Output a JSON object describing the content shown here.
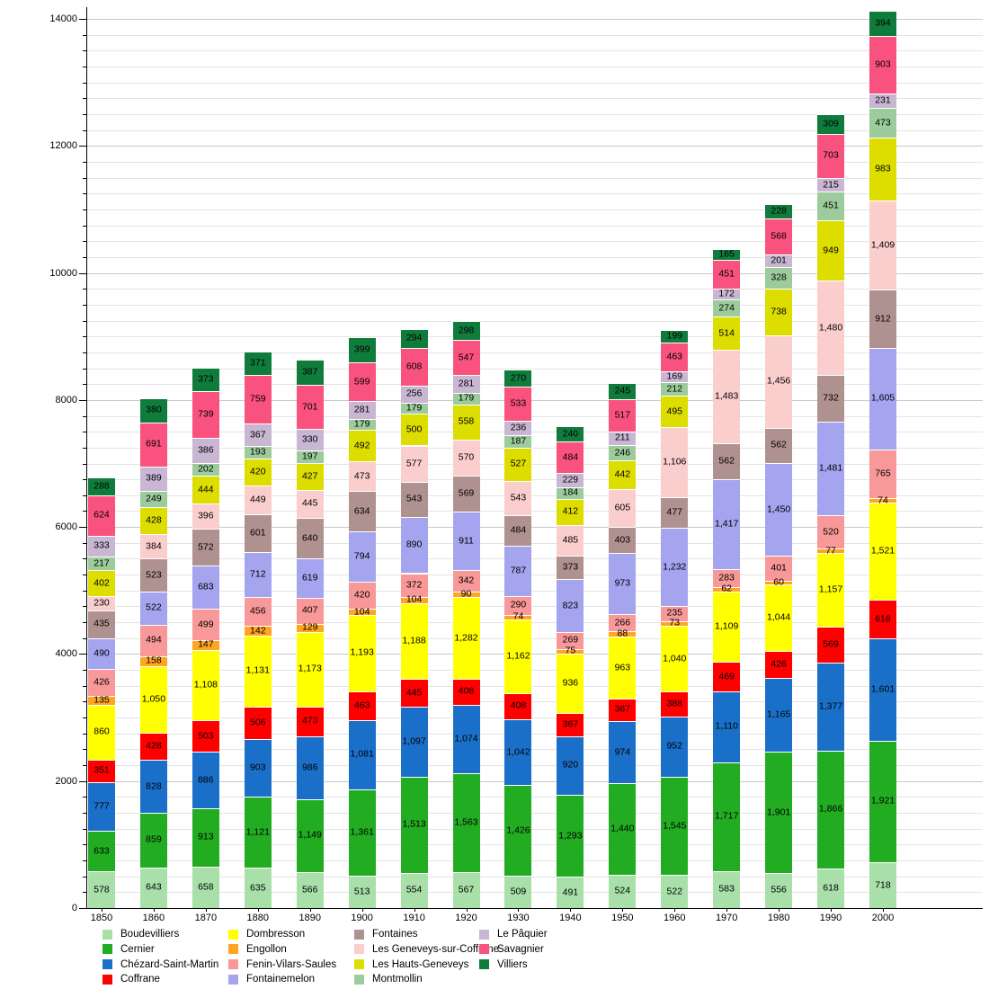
{
  "chart_data": {
    "type": "bar",
    "stacked": true,
    "categories": [
      "1850",
      "1860",
      "1870",
      "1880",
      "1890",
      "1900",
      "1910",
      "1920",
      "1930",
      "1940",
      "1950",
      "1960",
      "1970",
      "1980",
      "1990",
      "2000"
    ],
    "series": [
      {
        "name": "Boudevilliers",
        "color": "#a9e0a9",
        "values": [
          578,
          643,
          658,
          635,
          566,
          513,
          554,
          567,
          509,
          491,
          524,
          522,
          583,
          556,
          618,
          718
        ]
      },
      {
        "name": "Cernier",
        "color": "#22ac22",
        "values": [
          633,
          859,
          913,
          1121,
          1149,
          1361,
          1513,
          1563,
          1426,
          1293,
          1440,
          1545,
          1717,
          1901,
          1866,
          1921
        ]
      },
      {
        "name": "Chézard-Saint-Martin",
        "color": "#1a70c8",
        "values": [
          777,
          828,
          886,
          903,
          986,
          1081,
          1097,
          1074,
          1042,
          920,
          974,
          952,
          1110,
          1165,
          1377,
          1601
        ]
      },
      {
        "name": "Coffrane",
        "color": "#ff0000",
        "values": [
          351,
          428,
          503,
          506,
          473,
          463,
          445,
          408,
          408,
          367,
          367,
          388,
          469,
          426,
          569,
          618
        ]
      },
      {
        "name": "Dombresson",
        "color": "#ffff00",
        "values": [
          860,
          1050,
          1108,
          1131,
          1173,
          1193,
          1188,
          1282,
          1162,
          936,
          963,
          1040,
          1109,
          1044,
          1157,
          1521
        ]
      },
      {
        "name": "Engollon",
        "color": "#ffa423",
        "values": [
          135,
          158,
          147,
          142,
          129,
          104,
          104,
          90,
          74,
          75,
          88,
          73,
          62,
          60,
          77,
          74
        ]
      },
      {
        "name": "Fenin-Vilars-Saules",
        "color": "#f99898",
        "values": [
          426,
          494,
          499,
          456,
          407,
          420,
          372,
          342,
          290,
          269,
          266,
          235,
          283,
          401,
          520,
          765
        ]
      },
      {
        "name": "Fontainemelon",
        "color": "#a4a4ef",
        "values": [
          490,
          522,
          683,
          712,
          619,
          794,
          890,
          911,
          787,
          823,
          973,
          1232,
          1417,
          1450,
          1481,
          1605
        ]
      },
      {
        "name": "Fontaines",
        "color": "#af9290",
        "values": [
          435,
          523,
          572,
          601,
          640,
          634,
          543,
          569,
          484,
          373,
          403,
          477,
          562,
          562,
          732,
          912
        ]
      },
      {
        "name": "Les Geneveys-sur-Coffrane",
        "color": "#fbcece",
        "values": [
          230,
          384,
          396,
          449,
          445,
          473,
          577,
          570,
          543,
          485,
          605,
          1106,
          1483,
          1456,
          1480,
          1409
        ]
      },
      {
        "name": "Les Hauts-Geneveys",
        "color": "#dedd00",
        "values": [
          402,
          428,
          444,
          420,
          427,
          492,
          500,
          558,
          527,
          412,
          442,
          495,
          514,
          738,
          949,
          983
        ]
      },
      {
        "name": "Montmollin",
        "color": "#9ccb9c",
        "values": [
          217,
          249,
          202,
          193,
          197,
          179,
          179,
          179,
          187,
          184,
          246,
          212,
          274,
          328,
          451,
          473
        ]
      },
      {
        "name": "Le Pâquier",
        "color": "#c8b6d3",
        "values": [
          333,
          389,
          386,
          367,
          330,
          281,
          256,
          281,
          236,
          229,
          211,
          169,
          172,
          201,
          215,
          231
        ]
      },
      {
        "name": "Savagnier",
        "color": "#f9527f",
        "values": [
          624,
          691,
          739,
          759,
          701,
          599,
          608,
          547,
          533,
          484,
          517,
          463,
          451,
          568,
          703,
          903
        ]
      },
      {
        "name": "Villiers",
        "color": "#107c3c",
        "values": [
          288,
          380,
          373,
          371,
          387,
          399,
          294,
          298,
          270,
          240,
          245,
          199,
          165,
          228,
          309,
          394
        ]
      }
    ],
    "ylim": [
      0,
      14000
    ],
    "y_major_step": 2000,
    "y_minor_step": 250,
    "yticklabels": [
      "0",
      "2000",
      "4000",
      "6000",
      "8000",
      "10000",
      "12000",
      "14000"
    ],
    "grid": true,
    "legend_position": "bottom",
    "legend_columns": [
      [
        "Boudevilliers",
        "Cernier",
        "Chézard-Saint-Martin",
        "Coffrane"
      ],
      [
        "Dombresson",
        "Engollon",
        "Fenin-Vilars-Saules",
        "Fontainemelon"
      ],
      [
        "Fontaines",
        "Les Geneveys-sur-Coffrane",
        "Les Hauts-Geneveys",
        "Montmollin"
      ],
      [
        "Le Pâquier",
        "Savagnier",
        "Villiers"
      ]
    ]
  }
}
